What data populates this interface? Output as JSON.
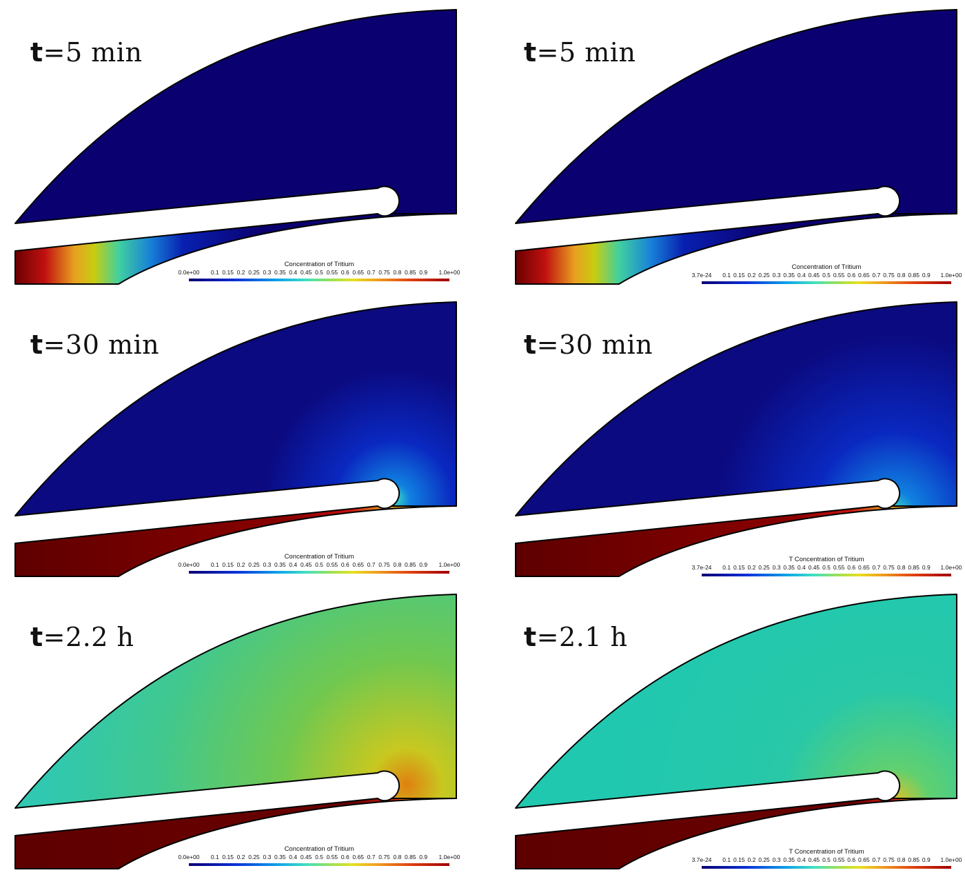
{
  "panels": [
    {
      "id": "left-5min",
      "column": "left",
      "row": 0,
      "time_prefix": "t",
      "time_value": "=5 min",
      "colorbar": {
        "title": "Concentration of Tritium",
        "min_label": "0.0e+00",
        "max_label": "1.0e+00"
      }
    },
    {
      "id": "right-5min",
      "column": "right",
      "row": 0,
      "time_prefix": "t",
      "time_value": "=5 min",
      "colorbar": {
        "title": "Concentration of Tritium",
        "min_label": "3.7e-24",
        "max_label": "1.0e+00"
      }
    },
    {
      "id": "left-30min",
      "column": "left",
      "row": 1,
      "time_prefix": "t",
      "time_value": "=30 min",
      "colorbar": {
        "title": "Concentration of Tritium",
        "min_label": "0.0e+00",
        "max_label": "1.0e+00"
      }
    },
    {
      "id": "right-30min",
      "column": "right",
      "row": 1,
      "time_prefix": "t",
      "time_value": "=30 min",
      "colorbar": {
        "title": "T Concentration of Tritium",
        "min_label": "3.7e-24",
        "max_label": "1.0e+00"
      }
    },
    {
      "id": "left-2.2h",
      "column": "left",
      "row": 2,
      "time_prefix": "t",
      "time_value": "=2.2 h",
      "colorbar": {
        "title": "Concentration of Tritium",
        "min_label": "0.0e+00",
        "max_label": "1.0e+00"
      }
    },
    {
      "id": "right-2.1h",
      "column": "right",
      "row": 2,
      "time_prefix": "t",
      "time_value": "=2.1 h",
      "colorbar": {
        "title": "T Concentration of Tritium",
        "min_label": "3.7e-24",
        "max_label": "1.0e+00"
      }
    }
  ],
  "colorbar_ticks": [
    "0.1",
    "0.15",
    "0.2",
    "0.25",
    "0.3",
    "0.35",
    "0.4",
    "0.45",
    "0.5",
    "0.55",
    "0.6",
    "0.65",
    "0.7",
    "0.75",
    "0.8",
    "0.85",
    "0.9"
  ],
  "colors": {
    "cmap_blue": "#0b0070",
    "cmap_red": "#6a0000",
    "outline": "#000000"
  }
}
